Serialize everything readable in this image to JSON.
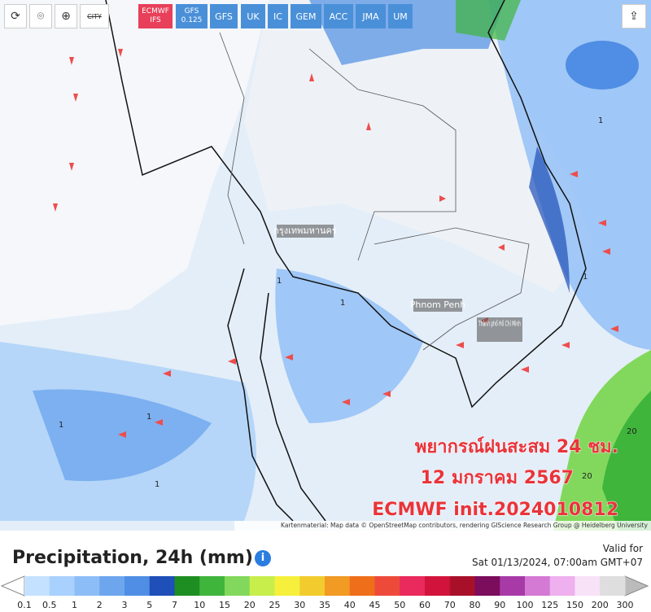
{
  "toolbar": {
    "city_button": "CITY",
    "models": [
      "ECMWF IFS",
      "GFS 0.125",
      "GFS",
      "UK",
      "IC",
      "GEM",
      "ACC",
      "JMA",
      "UM"
    ]
  },
  "map": {
    "place_labels": [
      "กรุงเทพมหานคร",
      "Phnom Penh",
      "Thành phố Hồ Chí Minh"
    ],
    "contour_labels": [
      "1",
      "1",
      "1",
      "1",
      "1",
      "1",
      "1",
      "20",
      "20"
    ],
    "overlay": [
      "พยากรณ์ฝนสะสม 24  ชม.",
      "12 มกราคม 2567",
      "ECMWF init.2024010812"
    ],
    "attribution": "Kartenmaterial: Map data © OpenStreetMap contributors, rendering GIScience Research Group @ Heidelberg University"
  },
  "legend": {
    "title": "Precipitation, 24h (mm)",
    "valid_for_label": "Valid for",
    "valid_time": "Sat 01/13/2024, 07:00am GMT+07",
    "ticks": [
      0.1,
      0.5,
      1,
      2,
      3,
      5,
      7,
      10,
      15,
      20,
      25,
      30,
      35,
      40,
      45,
      50,
      60,
      70,
      80,
      90,
      100,
      125,
      150,
      200,
      300
    ],
    "colors": [
      "#c4e2ff",
      "#a9d1fd",
      "#8dbdf6",
      "#6ea6ee",
      "#4f8ee4",
      "#1f4fb8",
      "#1e8e22",
      "#3fb53c",
      "#82d85c",
      "#c8ee4c",
      "#f6f03c",
      "#f2cc2e",
      "#f19a24",
      "#ef6e1a",
      "#ee4a3a",
      "#ea2a5c",
      "#d2143c",
      "#a8102a",
      "#7c0c5c",
      "#a83aa8",
      "#d47ad4",
      "#eeb0ee",
      "#f8e2f8",
      "#dedede"
    ]
  }
}
